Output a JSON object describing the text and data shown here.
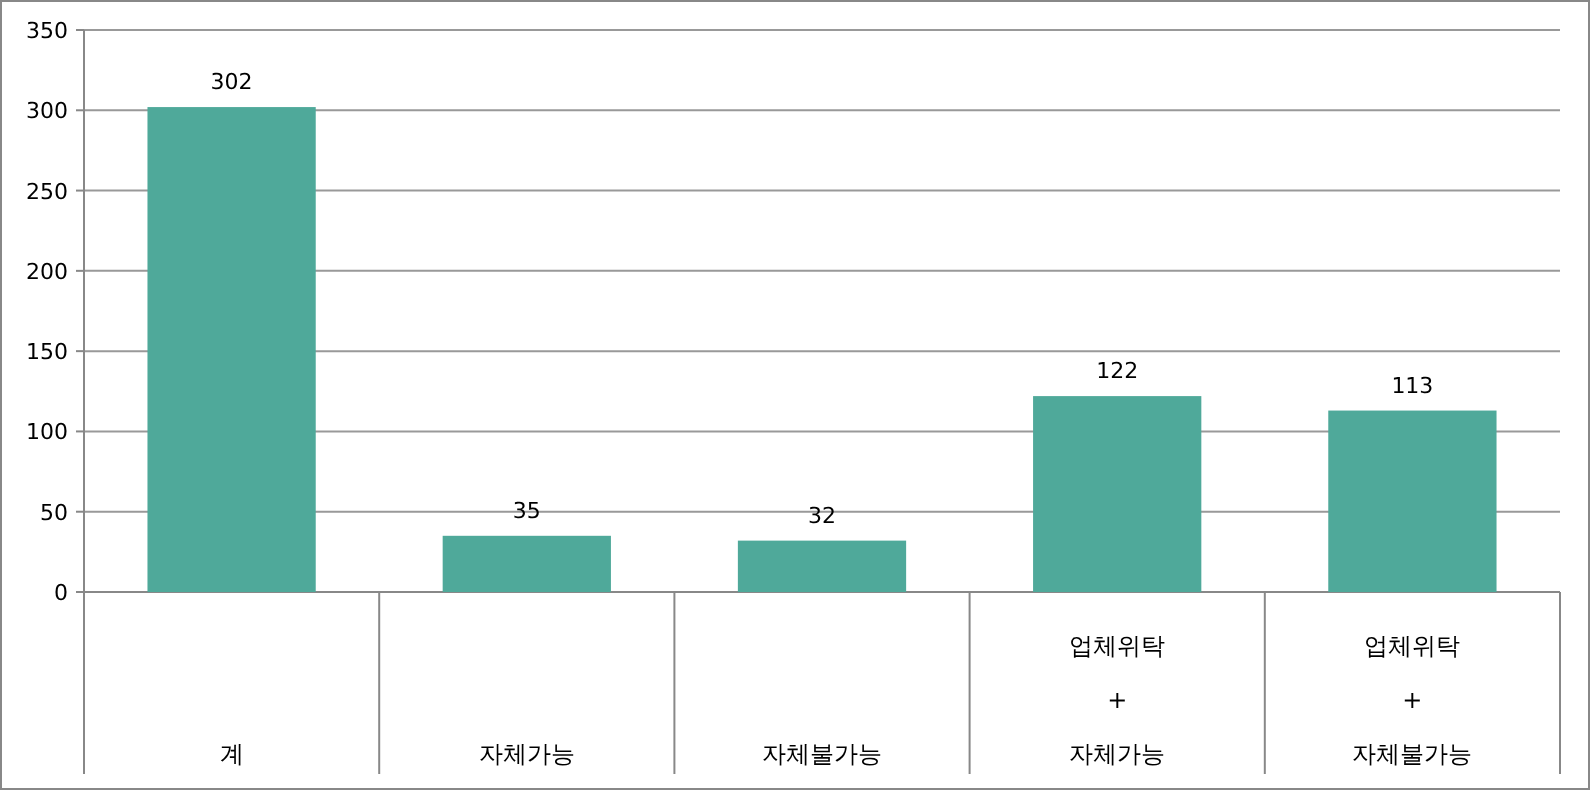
{
  "chart_data": {
    "type": "bar",
    "categories": [
      "계",
      "자체가능",
      "자체불가능",
      "업체위탁\n+\n자체가능",
      "업체위탁\n+\n자체불가능"
    ],
    "values": [
      302,
      35,
      32,
      122,
      113
    ],
    "color": "#4fa99a",
    "ylim": [
      0,
      350
    ],
    "yticks": [
      0,
      50,
      100,
      150,
      200,
      250,
      300,
      350
    ],
    "grid": "y",
    "data_labels": true
  }
}
